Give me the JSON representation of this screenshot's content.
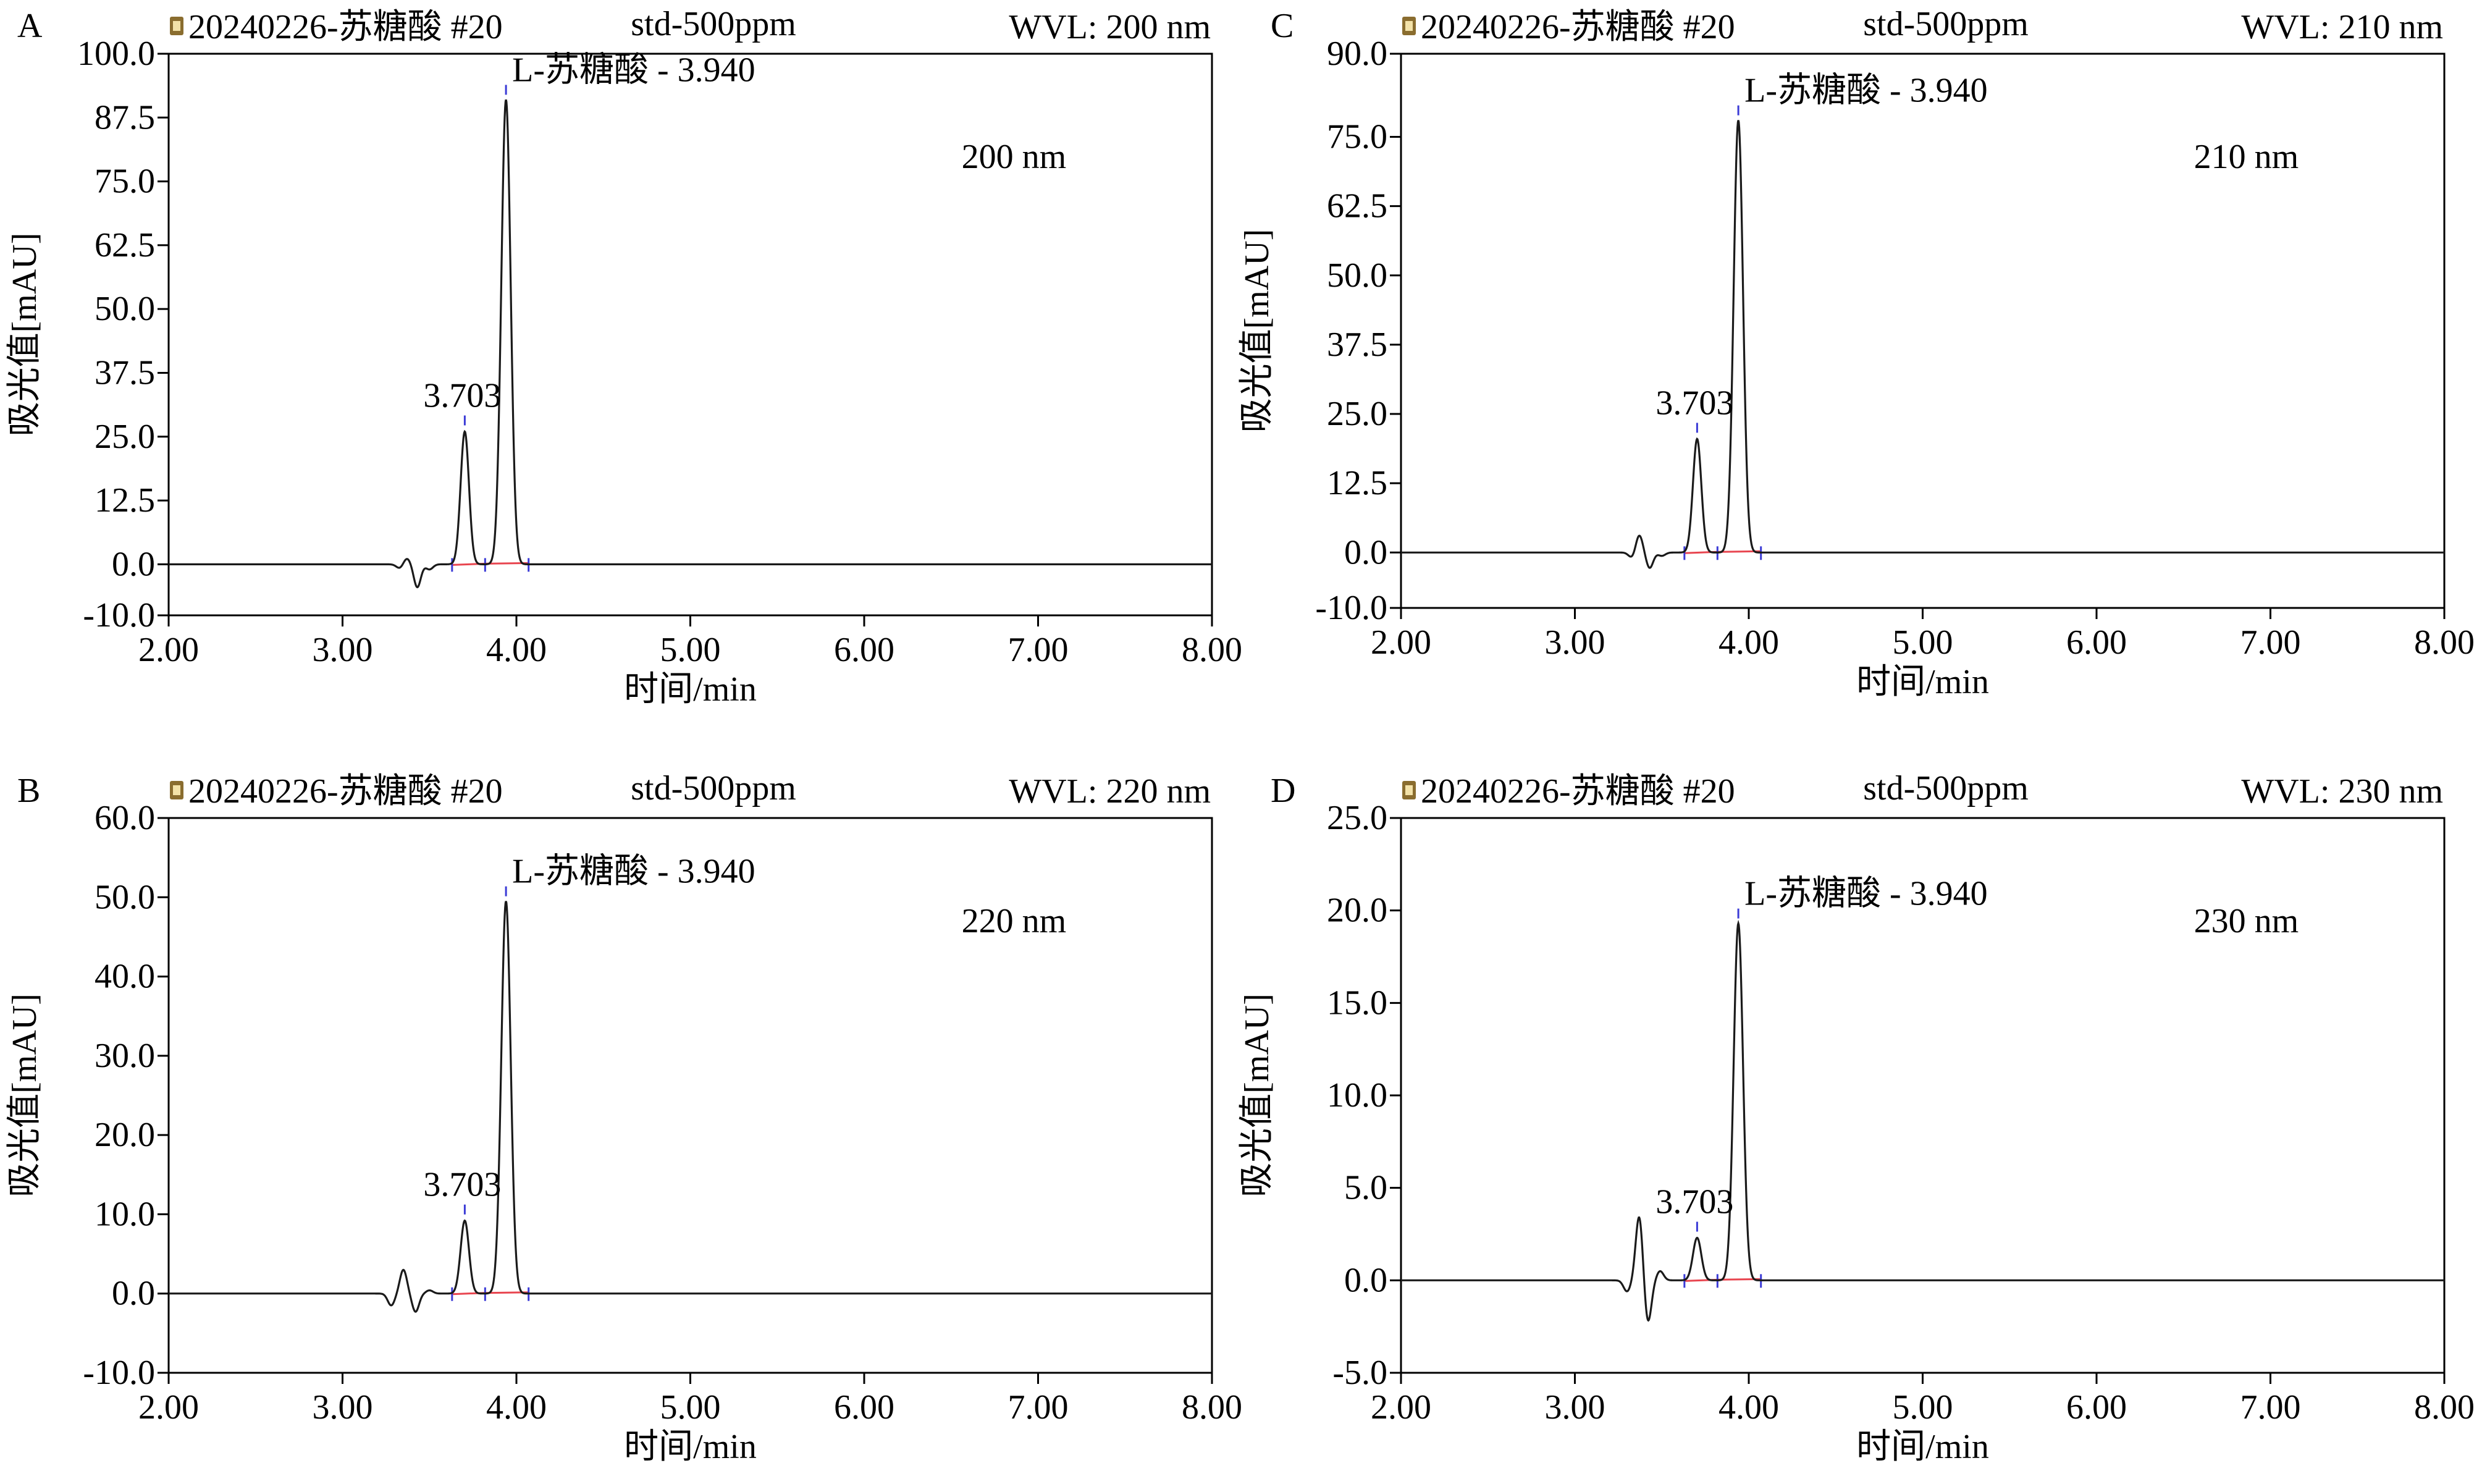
{
  "figure": {
    "common": {
      "file_label": "20240226-苏糖酸 #20",
      "sample_label": "std-500ppm",
      "ylabel": "吸光值[mAU]",
      "xlabel": "时间/min",
      "peak_major_label": "L-苏糖酸 - 3.940",
      "peak_minor_label": "3.703",
      "colors": {
        "trace": "#1a1a1a",
        "baseline": "#e8454f",
        "marker": "#3b3bd6",
        "frame": "#000000",
        "file_icon": "#8a6d2f"
      }
    }
  },
  "chart_data": [
    {
      "type": "line",
      "panel_letter": "A",
      "wvl_label": "WVL: 200 nm",
      "wavelength_annotation": "200 nm",
      "xlim": [
        2.0,
        8.0
      ],
      "ylim": [
        -10.0,
        100.0
      ],
      "xticks": [
        "2.00",
        "3.00",
        "4.00",
        "5.00",
        "6.00",
        "7.00",
        "8.00"
      ],
      "yticks": [
        "-10.0",
        "0.0",
        "12.5",
        "25.0",
        "37.5",
        "50.0",
        "62.5",
        "75.0",
        "87.5",
        "100.0"
      ],
      "peaks": [
        {
          "rt": 3.703,
          "height": 26.0
        },
        {
          "rt": 3.94,
          "height": 91.0
        }
      ],
      "disturbance": [
        {
          "rt": 3.33,
          "height": -0.8
        },
        {
          "rt": 3.37,
          "height": 1.2
        },
        {
          "rt": 3.43,
          "height": -4.5
        },
        {
          "rt": 3.5,
          "height": -1.0
        }
      ]
    },
    {
      "type": "line",
      "panel_letter": "C",
      "wvl_label": "WVL: 210 nm",
      "wavelength_annotation": "210 nm",
      "xlim": [
        2.0,
        8.0
      ],
      "ylim": [
        -10.0,
        90.0
      ],
      "xticks": [
        "2.00",
        "3.00",
        "4.00",
        "5.00",
        "6.00",
        "7.00",
        "8.00"
      ],
      "yticks": [
        "-10.0",
        "0.0",
        "12.5",
        "25.0",
        "37.5",
        "50.0",
        "62.5",
        "75.0",
        "90.0"
      ],
      "peaks": [
        {
          "rt": 3.703,
          "height": 20.5
        },
        {
          "rt": 3.94,
          "height": 78.0
        }
      ],
      "disturbance": [
        {
          "rt": 3.33,
          "height": -1.0
        },
        {
          "rt": 3.37,
          "height": 3.2
        },
        {
          "rt": 3.43,
          "height": -2.8
        },
        {
          "rt": 3.5,
          "height": -0.6
        }
      ]
    },
    {
      "type": "line",
      "panel_letter": "B",
      "wvl_label": "WVL: 220 nm",
      "wavelength_annotation": "220 nm",
      "xlim": [
        2.0,
        8.0
      ],
      "ylim": [
        -10.0,
        60.0
      ],
      "xticks": [
        "2.00",
        "3.00",
        "4.00",
        "5.00",
        "6.00",
        "7.00",
        "8.00"
      ],
      "yticks": [
        "-10.0",
        "0.0",
        "10.0",
        "20.0",
        "30.0",
        "40.0",
        "50.0",
        "60.0"
      ],
      "peaks": [
        {
          "rt": 3.703,
          "height": 9.2
        },
        {
          "rt": 3.94,
          "height": 49.5
        }
      ],
      "disturbance": [
        {
          "rt": 3.28,
          "height": -1.5
        },
        {
          "rt": 3.35,
          "height": 3.0
        },
        {
          "rt": 3.42,
          "height": -2.3
        },
        {
          "rt": 3.5,
          "height": 0.4
        }
      ]
    },
    {
      "type": "line",
      "panel_letter": "D",
      "wvl_label": "WVL: 230 nm",
      "wavelength_annotation": "230 nm",
      "xlim": [
        2.0,
        8.0
      ],
      "ylim": [
        -5.0,
        25.0
      ],
      "xticks": [
        "2.00",
        "3.00",
        "4.00",
        "5.00",
        "6.00",
        "7.00",
        "8.00"
      ],
      "yticks": [
        "-5.0",
        "0.0",
        "5.0",
        "10.0",
        "15.0",
        "20.0",
        "25.0"
      ],
      "peaks": [
        {
          "rt": 3.703,
          "height": 2.3
        },
        {
          "rt": 3.94,
          "height": 19.3
        }
      ],
      "disturbance": [
        {
          "rt": 3.3,
          "height": -0.6
        },
        {
          "rt": 3.37,
          "height": 3.5
        },
        {
          "rt": 3.42,
          "height": -2.3
        },
        {
          "rt": 3.49,
          "height": 0.5
        }
      ]
    }
  ]
}
